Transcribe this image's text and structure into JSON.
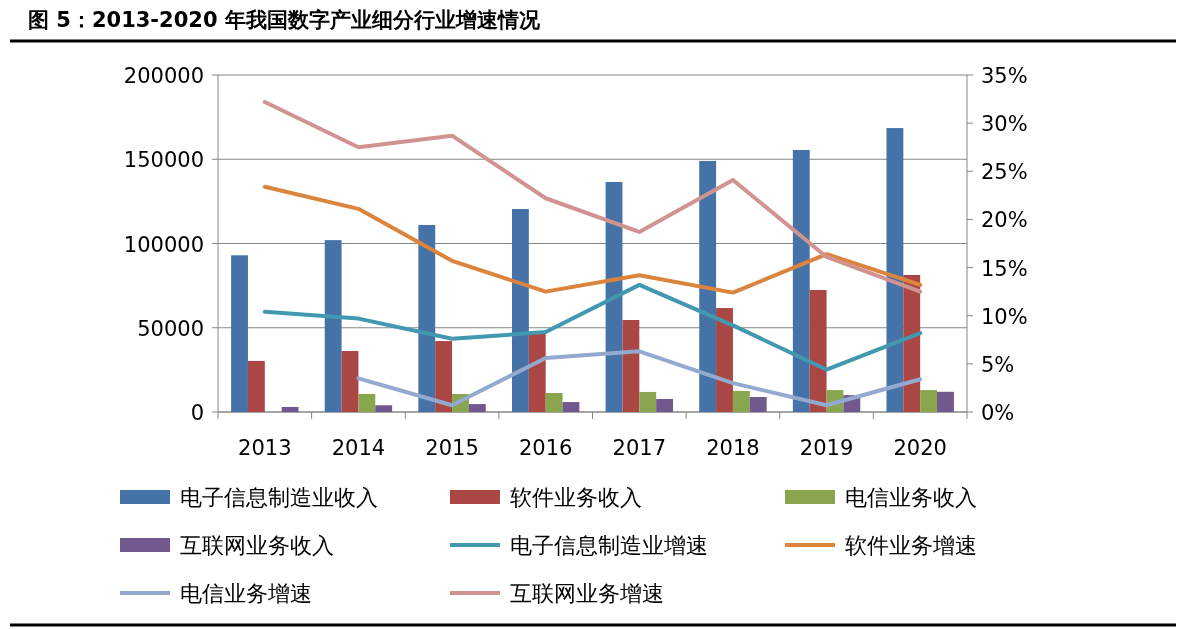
{
  "chart_data": {
    "type": "bar",
    "title": "图 5：2013-2020 年我国数字产业细分行业增速情况",
    "categories": [
      "2013",
      "2014",
      "2015",
      "2016",
      "2017",
      "2018",
      "2019",
      "2020"
    ],
    "series": [
      {
        "name": "电子信息制造业收入",
        "color": "#4572a7",
        "values": [
          93000,
          102000,
          111000,
          120500,
          136500,
          149000,
          155500,
          168500
        ]
      },
      {
        "name": "软件业务收入",
        "color": "#aa4643",
        "values": [
          30300,
          36200,
          42100,
          47000,
          54600,
          61700,
          72400,
          81300
        ]
      },
      {
        "name": "电信业务收入",
        "color": "#89a54e",
        "values": [
          null,
          10700,
          10700,
          11300,
          11900,
          12500,
          13000,
          13000
        ]
      },
      {
        "name": "互联网业务收入",
        "color": "#71588f",
        "values": [
          3000,
          4000,
          4700,
          5900,
          7700,
          8900,
          10000,
          12000
        ]
      },
      {
        "name": "电子信息制造业增速",
        "type": "line",
        "axis": "y2",
        "color": "#4198af",
        "values": [
          10.4,
          9.7,
          7.6,
          8.3,
          13.2,
          9.0,
          4.4,
          8.2
        ]
      },
      {
        "name": "软件业务增速",
        "type": "line",
        "axis": "y2",
        "color": "#db843d",
        "values": [
          23.4,
          21.1,
          15.7,
          12.5,
          14.2,
          12.4,
          16.4,
          13.2
        ]
      },
      {
        "name": "电信业务增速",
        "type": "line",
        "axis": "y2",
        "color": "#93a9cf",
        "values": [
          null,
          3.5,
          0.7,
          5.6,
          6.3,
          3.0,
          0.7,
          3.4
        ]
      },
      {
        "name": "互联网业务增速",
        "type": "line",
        "axis": "y2",
        "color": "#d19392",
        "values": [
          32.2,
          27.5,
          28.7,
          22.2,
          18.7,
          24.1,
          16.1,
          12.5
        ]
      }
    ],
    "ylim": [
      0,
      200000
    ],
    "yticks": [
      0,
      50000,
      100000,
      150000,
      200000
    ],
    "y2lim": [
      0,
      35
    ],
    "y2ticks": [
      {
        "value": 0,
        "label": "0%"
      },
      {
        "value": 5,
        "label": "5%"
      },
      {
        "value": 10,
        "label": "10%"
      },
      {
        "value": 15,
        "label": "15%"
      },
      {
        "value": 20,
        "label": "20%"
      },
      {
        "value": 25,
        "label": "25%"
      },
      {
        "value": 30,
        "label": "30%"
      },
      {
        "value": 35,
        "label": "35%"
      }
    ],
    "grid": "y",
    "legend": "bottom"
  }
}
